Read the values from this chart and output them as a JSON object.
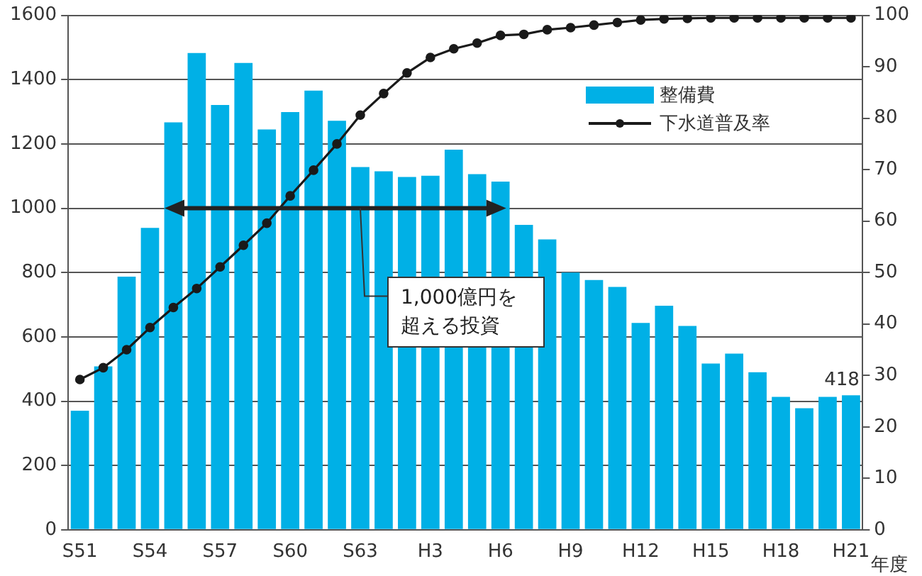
{
  "chart_data": {
    "type": "bar",
    "categories": [
      "S51",
      null,
      null,
      "S54",
      null,
      null,
      "S57",
      null,
      null,
      "S60",
      null,
      null,
      "S63",
      null,
      null,
      "H3",
      null,
      null,
      "H6",
      null,
      null,
      "H9",
      null,
      null,
      "H12",
      null,
      null,
      "H15",
      null,
      null,
      "H18",
      null,
      null,
      "H21"
    ],
    "series": [
      {
        "name": "整備費",
        "color": "#00b0e6",
        "values": [
          370,
          508,
          787,
          939,
          1267,
          1483,
          1321,
          1452,
          1245,
          1299,
          1366,
          1272,
          1128,
          1115,
          1097,
          1101,
          1182,
          1106,
          1083,
          948,
          903,
          800,
          777,
          755,
          643,
          697,
          634,
          517,
          548,
          490,
          413,
          378,
          413,
          418
        ],
        "value_labels": [
          null,
          null,
          null,
          null,
          null,
          null,
          null,
          null,
          null,
          null,
          null,
          null,
          null,
          null,
          null,
          null,
          null,
          null,
          null,
          null,
          null,
          null,
          null,
          null,
          null,
          null,
          null,
          null,
          null,
          null,
          null,
          null,
          null,
          "418"
        ]
      },
      {
        "name": "下水道普及率",
        "type": "line",
        "axis": "y2",
        "color": "#1a1a1a",
        "values": [
          29.2,
          31.5,
          35,
          39.3,
          43.2,
          46.9,
          51.1,
          55.3,
          59.6,
          64.9,
          69.9,
          75,
          80.6,
          84.8,
          88.8,
          91.8,
          93.5,
          94.6,
          96.1,
          96.3,
          97.2,
          97.6,
          98.1,
          98.6,
          99.1,
          99.3,
          99.4,
          99.5,
          99.5,
          99.5,
          99.5,
          99.5,
          99.5,
          99.5
        ]
      }
    ],
    "xlabel": "年度",
    "ylim": [
      0,
      1600
    ],
    "yticks": [
      0,
      200,
      400,
      600,
      800,
      1000,
      1200,
      1400,
      1600
    ],
    "y2lim": [
      0,
      100
    ],
    "y2ticks": [
      0,
      10,
      20,
      30,
      40,
      50,
      60,
      70,
      80,
      90,
      100
    ],
    "grid": "y",
    "legend": "top right",
    "marker": "circle",
    "annotations": [
      "1,000億円を超える投資"
    ]
  }
}
